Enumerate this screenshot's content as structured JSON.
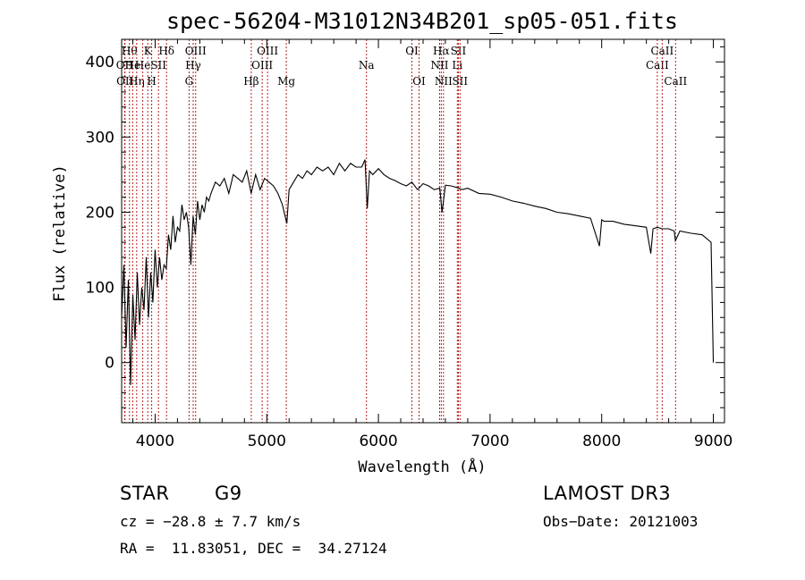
{
  "chart_data": {
    "type": "line",
    "title": "spec-56204-M31012N34B201_sp05-051.fits",
    "xlabel": "Wavelength (Å)",
    "ylabel": "Flux (relative)",
    "xlim": [
      3700,
      9100
    ],
    "ylim": [
      -80,
      430
    ],
    "xticks": [
      4000,
      5000,
      6000,
      7000,
      8000,
      9000
    ],
    "xtick_labels": [
      "4000",
      "5000",
      "6000",
      "7000",
      "8000",
      "9000"
    ],
    "yticks": [
      0,
      100,
      200,
      300,
      400
    ],
    "ytick_labels": [
      "0",
      "100",
      "200",
      "300",
      "400"
    ],
    "line_color": "#000000",
    "marker_color": "#b22222",
    "series": [
      {
        "name": "flux",
        "x": [
          3700,
          3720,
          3740,
          3760,
          3780,
          3800,
          3820,
          3840,
          3860,
          3880,
          3900,
          3920,
          3940,
          3960,
          3980,
          4000,
          4020,
          4040,
          4060,
          4080,
          4100,
          4120,
          4140,
          4160,
          4180,
          4200,
          4220,
          4240,
          4260,
          4280,
          4300,
          4320,
          4340,
          4360,
          4380,
          4400,
          4420,
          4440,
          4460,
          4480,
          4500,
          4540,
          4580,
          4620,
          4660,
          4700,
          4740,
          4780,
          4820,
          4860,
          4900,
          4940,
          4980,
          5020,
          5060,
          5100,
          5140,
          5180,
          5200,
          5240,
          5280,
          5320,
          5360,
          5400,
          5450,
          5500,
          5550,
          5600,
          5650,
          5700,
          5750,
          5800,
          5850,
          5880,
          5900,
          5920,
          5950,
          6000,
          6050,
          6100,
          6150,
          6200,
          6250,
          6300,
          6350,
          6400,
          6450,
          6500,
          6550,
          6570,
          6600,
          6650,
          6700,
          6750,
          6800,
          6900,
          7000,
          7100,
          7200,
          7300,
          7400,
          7500,
          7600,
          7700,
          7800,
          7900,
          7980,
          8000,
          8020,
          8100,
          8200,
          8300,
          8400,
          8440,
          8460,
          8500,
          8540,
          8600,
          8650,
          8660,
          8700,
          8800,
          8900,
          8980,
          9000
        ],
        "y": [
          60,
          130,
          20,
          110,
          -30,
          90,
          30,
          120,
          50,
          100,
          70,
          140,
          60,
          120,
          80,
          150,
          100,
          140,
          110,
          130,
          125,
          170,
          150,
          195,
          160,
          180,
          175,
          210,
          190,
          200,
          180,
          130,
          195,
          170,
          215,
          190,
          210,
          200,
          220,
          215,
          225,
          240,
          235,
          245,
          225,
          250,
          245,
          240,
          255,
          225,
          250,
          230,
          245,
          240,
          235,
          225,
          210,
          185,
          230,
          240,
          250,
          245,
          255,
          250,
          260,
          255,
          260,
          250,
          265,
          255,
          265,
          260,
          260,
          270,
          205,
          255,
          250,
          258,
          250,
          245,
          242,
          238,
          235,
          240,
          230,
          238,
          235,
          230,
          232,
          200,
          236,
          235,
          233,
          230,
          232,
          225,
          224,
          220,
          215,
          212,
          208,
          205,
          200,
          198,
          195,
          192,
          155,
          190,
          188,
          188,
          184,
          182,
          180,
          145,
          178,
          180,
          178,
          178,
          175,
          162,
          175,
          172,
          170,
          160,
          0
        ]
      }
    ],
    "markers": [
      {
        "wl": 3727,
        "label": "OII",
        "row": 2
      },
      {
        "wl": 3730,
        "label": "OII",
        "row": 3
      },
      {
        "wl": 3770,
        "label": "Hθ",
        "row": 1
      },
      {
        "wl": 3799,
        "label": "He",
        "row": 2
      },
      {
        "wl": 3835,
        "label": "Hη",
        "row": 3
      },
      {
        "wl": 3889,
        "label": "He",
        "row": 2
      },
      {
        "wl": 3934,
        "label": "K",
        "row": 1
      },
      {
        "wl": 3969,
        "label": "H",
        "row": 3
      },
      {
        "wl": 4030,
        "label": "SII",
        "row": 2
      },
      {
        "wl": 4102,
        "label": "Hδ",
        "row": 1
      },
      {
        "wl": 4304,
        "label": "G",
        "row": 3
      },
      {
        "wl": 4341,
        "label": "Hγ",
        "row": 2
      },
      {
        "wl": 4363,
        "label": "OIII",
        "row": 1
      },
      {
        "wl": 4861,
        "label": "Hβ",
        "row": 3
      },
      {
        "wl": 4959,
        "label": "OIII",
        "row": 2
      },
      {
        "wl": 5007,
        "label": "OIII",
        "row": 1
      },
      {
        "wl": 5175,
        "label": "Mg",
        "row": 3
      },
      {
        "wl": 5893,
        "label": "Na",
        "row": 2
      },
      {
        "wl": 6300,
        "label": "OI",
        "row": 1
      },
      {
        "wl": 6364,
        "label": "OI",
        "row": 3
      },
      {
        "wl": 6548,
        "label": "NII",
        "row": 2
      },
      {
        "wl": 6563,
        "label": "Hα",
        "row": 1
      },
      {
        "wl": 6583,
        "label": "NII",
        "row": 3
      },
      {
        "wl": 6707,
        "label": "Li",
        "row": 2
      },
      {
        "wl": 6716,
        "label": "SII",
        "row": 1
      },
      {
        "wl": 6731,
        "label": "SII",
        "row": 3
      },
      {
        "wl": 8498,
        "label": "CaII",
        "row": 2
      },
      {
        "wl": 8542,
        "label": "CaII",
        "row": 1
      },
      {
        "wl": 8662,
        "label": "CaII",
        "row": 3
      }
    ]
  },
  "info": {
    "class_label": "STAR",
    "subclass": "G9",
    "survey": "LAMOST DR3",
    "cz_line": "cz = −28.8 ± 7.7 km/s",
    "obs_date_line": "Obs−Date: 20121003",
    "radec_line": "RA =  11.83051, DEC =  34.27124"
  }
}
